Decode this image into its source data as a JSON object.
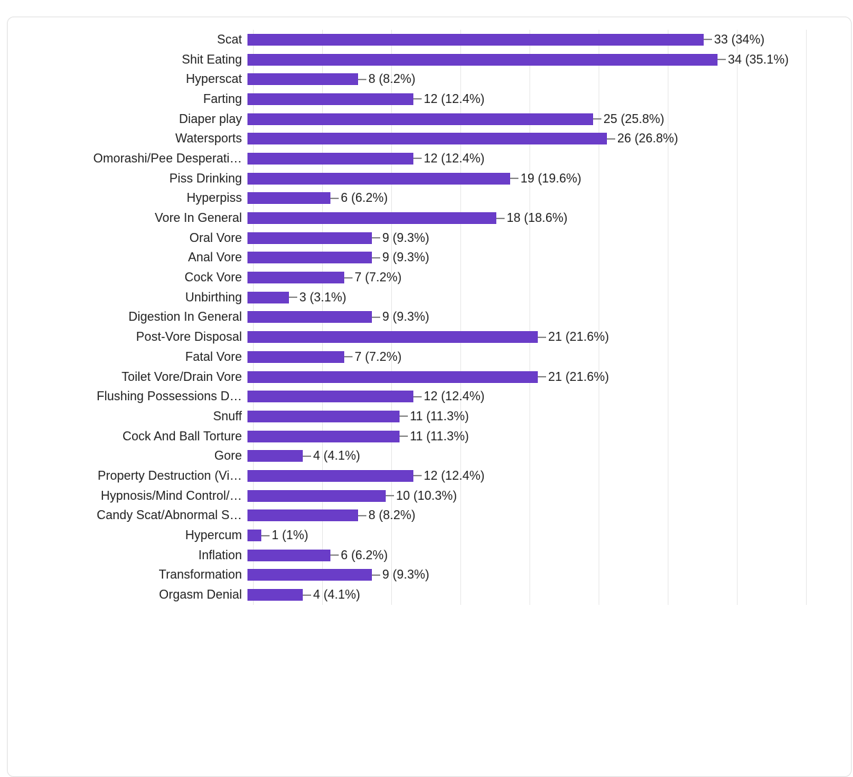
{
  "chart_data": {
    "type": "bar",
    "orientation": "horizontal",
    "title": "",
    "xlabel": "",
    "ylabel": "",
    "xlim": [
      0,
      40
    ],
    "grid_step": 5,
    "grid_on": true,
    "bar_color": "#6a3dc8",
    "grid_color": "#e8e8e8",
    "tick_color": "#8a8a8a",
    "categories": [
      "Scat",
      "Shit Eating",
      "Hyperscat",
      "Farting",
      "Diaper play",
      "Watersports",
      "Omorashi/Pee Desperati…",
      "Piss Drinking",
      "Hyperpiss",
      "Vore In General",
      "Oral Vore",
      "Anal Vore",
      "Cock Vore",
      "Unbirthing",
      "Digestion In General",
      "Post-Vore Disposal",
      "Fatal Vore",
      "Toilet Vore/Drain Vore",
      "Flushing Possessions D…",
      "Snuff",
      "Cock And Ball Torture",
      "Gore",
      "Property Destruction (Vi…",
      "Hypnosis/Mind Control/…",
      "Candy Scat/Abnormal S…",
      "Hypercum",
      "Inflation",
      "Transformation",
      "Orgasm Denial"
    ],
    "values": [
      33,
      34,
      8,
      12,
      25,
      26,
      12,
      19,
      6,
      18,
      9,
      9,
      7,
      3,
      9,
      21,
      7,
      21,
      12,
      11,
      11,
      4,
      12,
      10,
      8,
      1,
      6,
      9,
      4
    ],
    "value_labels": [
      "33 (34%)",
      "34 (35.1%)",
      "8 (8.2%)",
      "12 (12.4%)",
      "25 (25.8%)",
      "26 (26.8%)",
      "12 (12.4%)",
      "19 (19.6%)",
      "6 (6.2%)",
      "18 (18.6%)",
      "9 (9.3%)",
      "9 (9.3%)",
      "7 (7.2%)",
      "3 (3.1%)",
      "9 (9.3%)",
      "21 (21.6%)",
      "7 (7.2%)",
      "21 (21.6%)",
      "12 (12.4%)",
      "11 (11.3%)",
      "11 (11.3%)",
      "4 (4.1%)",
      "12 (12.4%)",
      "10 (10.3%)",
      "8 (8.2%)",
      "1 (1%)",
      "6 (6.2%)",
      "9 (9.3%)",
      "4 (4.1%)"
    ]
  }
}
